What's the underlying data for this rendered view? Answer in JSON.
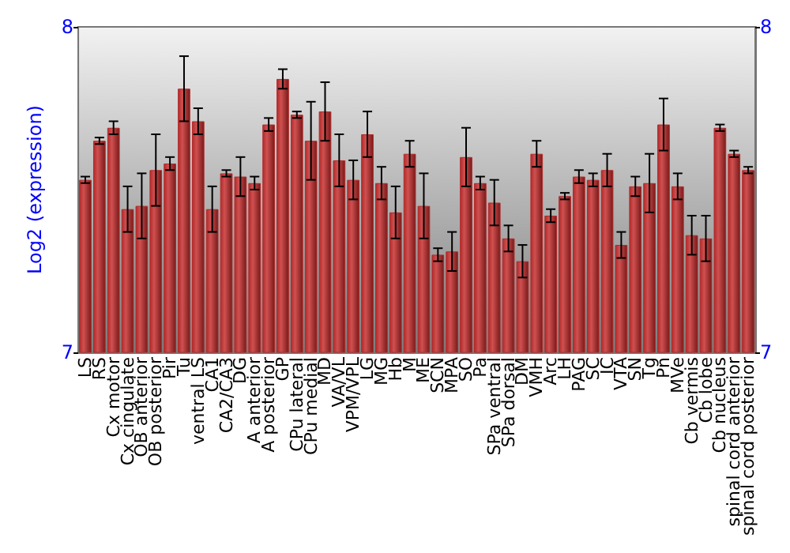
{
  "chart_data": {
    "type": "bar",
    "ylabel": "Log2 (expression)",
    "categories": [
      "LS",
      "RS",
      "Cx motor",
      "Cx cingulate",
      "OB anterior",
      "OB posterior",
      "Pir",
      "Tu",
      "ventral LS",
      "CA1",
      "CA2/CA3",
      "DG",
      "A anterior",
      "A posterior",
      "GP",
      "CPu lateral",
      "CPu medial",
      "MD",
      "VA/VL",
      "VPM/VPL",
      "LG",
      "MG",
      "Hb",
      "M",
      "ME",
      "SCN",
      "MPA",
      "SO",
      "Pa",
      "SPa ventral",
      "SPa dorsal",
      "DM",
      "VMH",
      "Arc",
      "LH",
      "PAG",
      "SC",
      "IC",
      "VTA",
      "SN",
      "Tg",
      "Pn",
      "MVe",
      "Cb vermis",
      "Cb lobe",
      "Cb nucleus",
      "spinal cord anterior",
      "spinal cord posterior"
    ],
    "values": [
      7.53,
      7.65,
      7.69,
      7.44,
      7.45,
      7.56,
      7.58,
      7.81,
      7.71,
      7.44,
      7.55,
      7.54,
      7.52,
      7.7,
      7.84,
      7.73,
      7.65,
      7.74,
      7.59,
      7.53,
      7.67,
      7.52,
      7.43,
      7.61,
      7.45,
      7.3,
      7.31,
      7.6,
      7.52,
      7.46,
      7.35,
      7.28,
      7.61,
      7.42,
      7.48,
      7.54,
      7.53,
      7.56,
      7.33,
      7.51,
      7.52,
      7.7,
      7.51,
      7.36,
      7.35,
      7.69,
      7.61,
      7.56
    ],
    "errors": [
      0.01,
      0.01,
      0.02,
      0.07,
      0.1,
      0.11,
      0.02,
      0.1,
      0.04,
      0.07,
      0.01,
      0.06,
      0.02,
      0.02,
      0.03,
      0.01,
      0.12,
      0.09,
      0.08,
      0.06,
      0.07,
      0.05,
      0.08,
      0.04,
      0.1,
      0.02,
      0.06,
      0.09,
      0.02,
      0.07,
      0.04,
      0.05,
      0.04,
      0.02,
      0.01,
      0.02,
      0.02,
      0.05,
      0.04,
      0.03,
      0.09,
      0.08,
      0.04,
      0.06,
      0.07,
      0.01,
      0.01,
      0.01
    ],
    "color": "#b22b2b",
    "ylim": [
      7,
      8
    ],
    "yticks": [
      7,
      8
    ],
    "y2lim": [
      7,
      8
    ],
    "y2ticks": [
      7,
      8
    ],
    "grid": false
  }
}
